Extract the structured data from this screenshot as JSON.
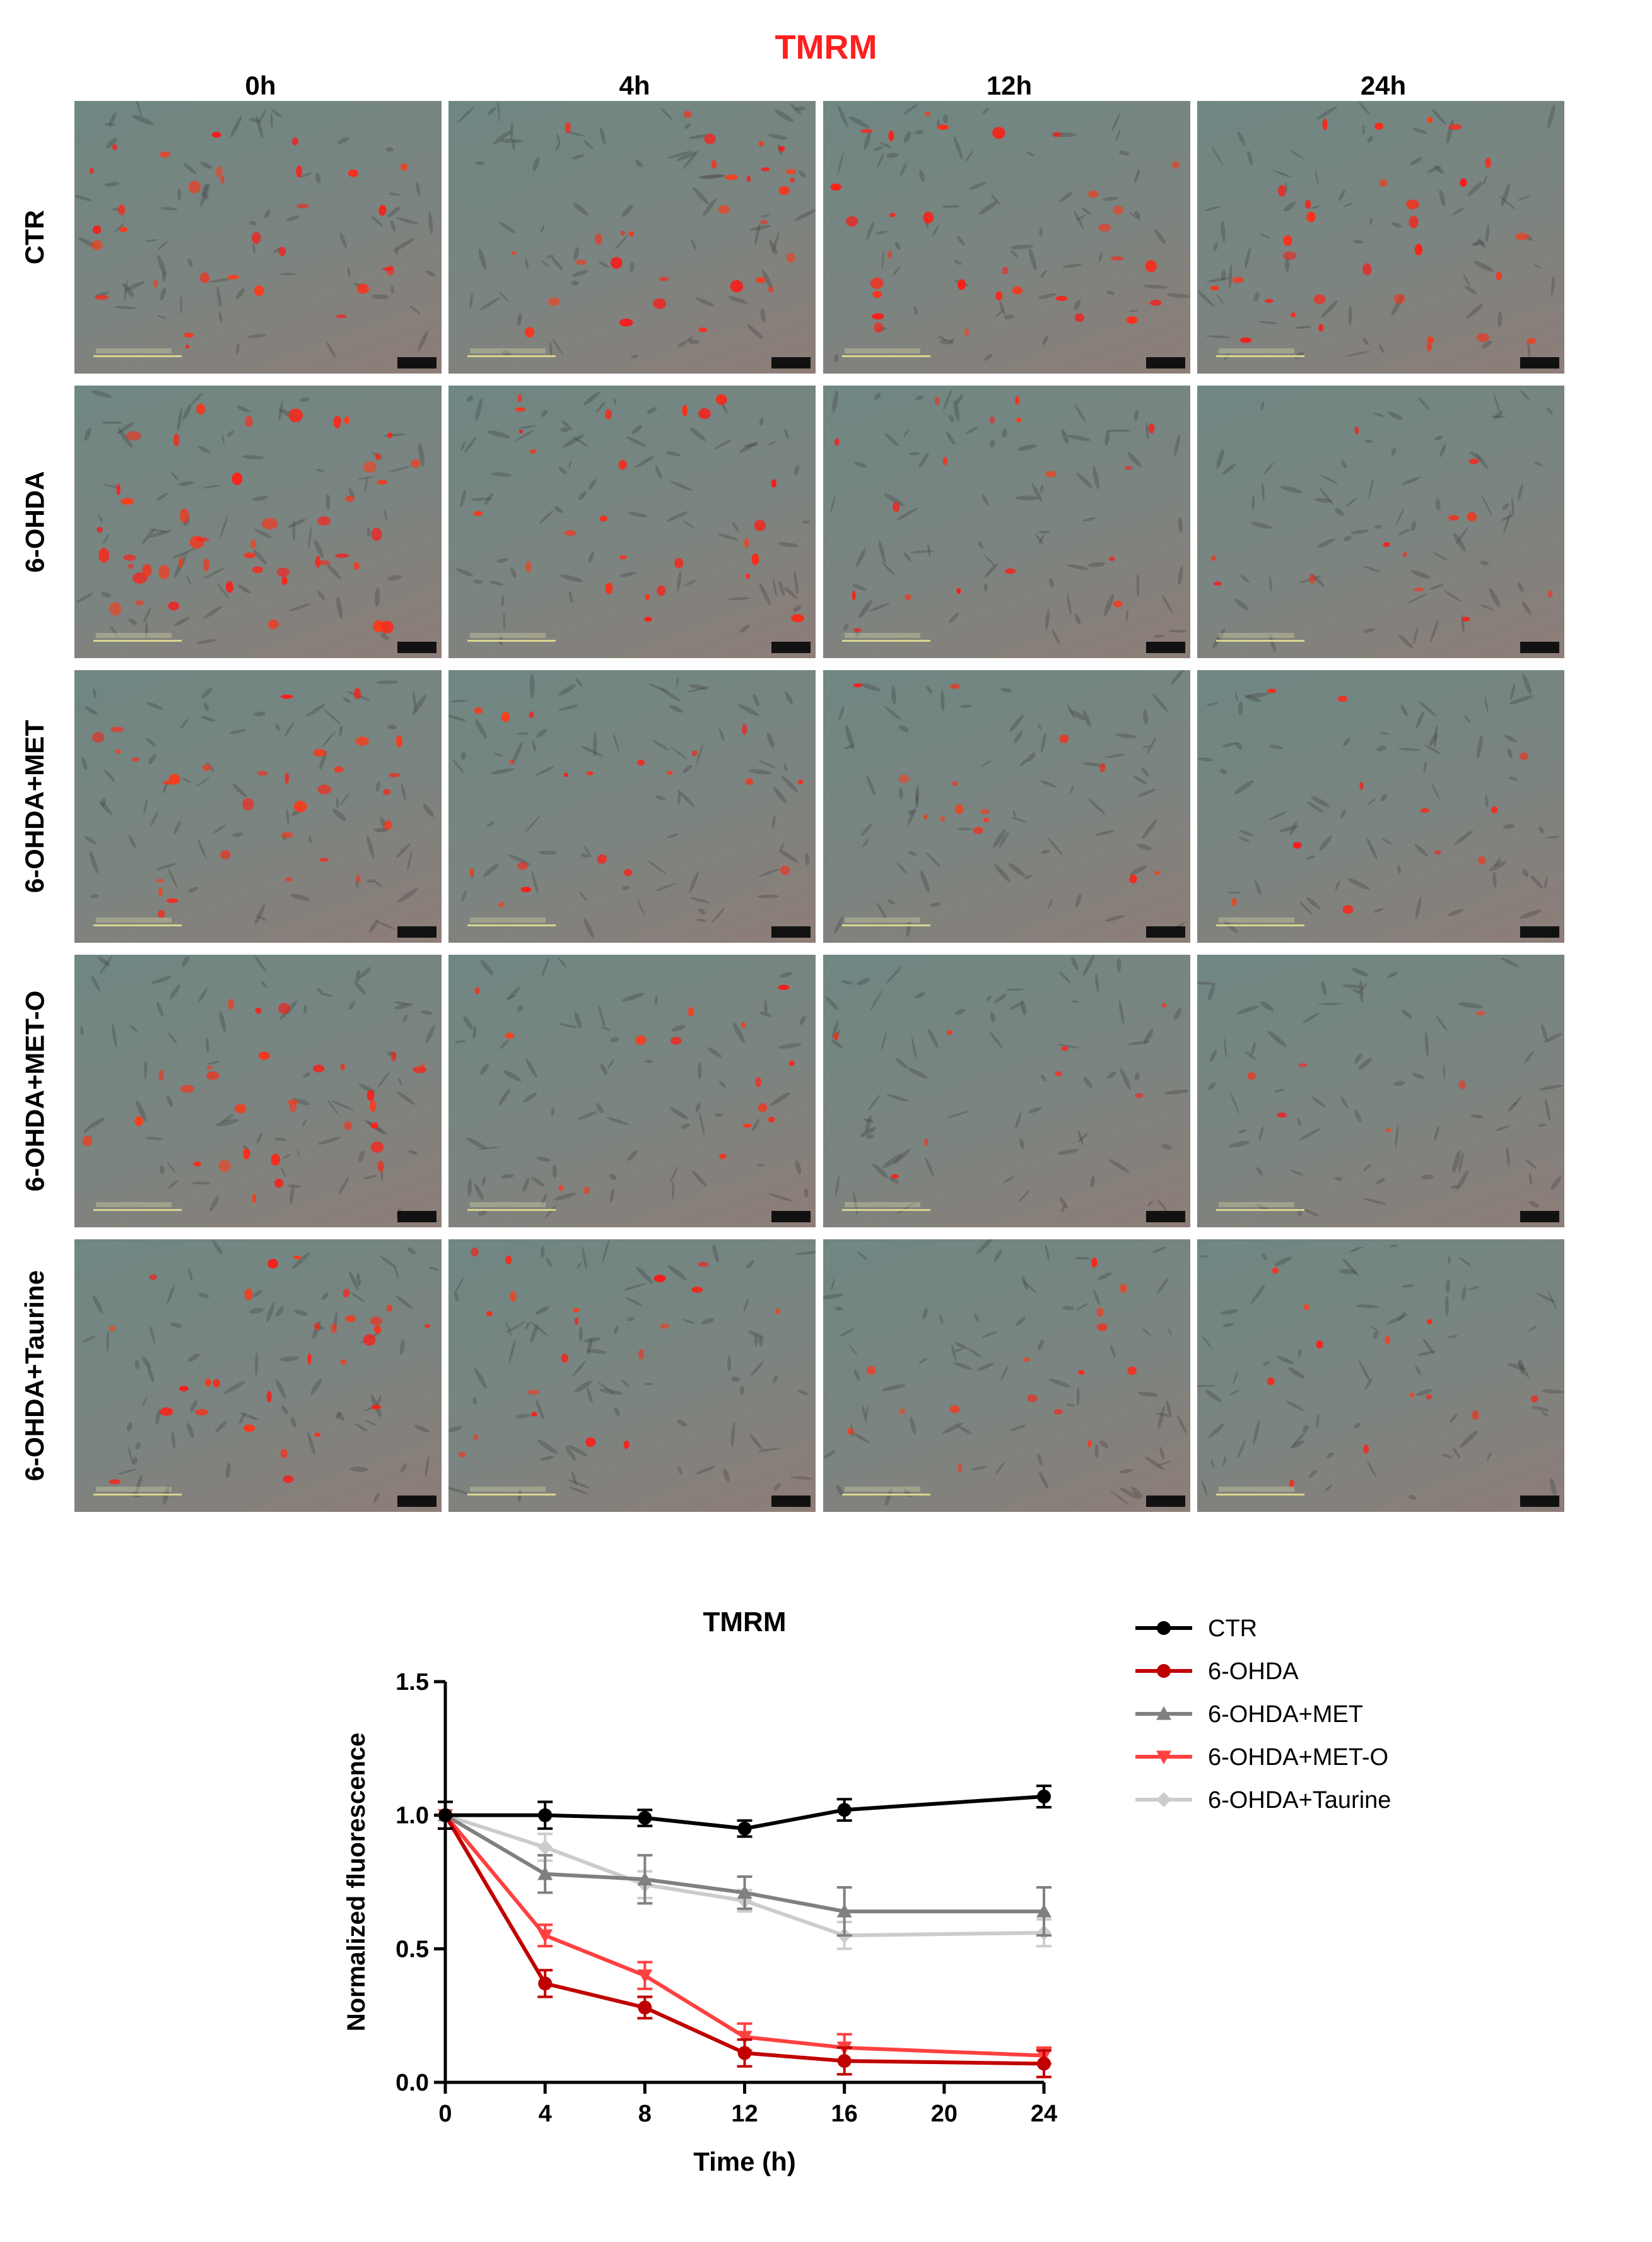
{
  "figure_title": "TMRM",
  "colors": {
    "title_red": "#ff1f1f",
    "CTR": "#000000",
    "6-OHDA": "#c00000",
    "6-OHDA+MET": "#808080",
    "6-OHDA+MET-O": "#ff4040",
    "6-OHDA+Taurine": "#cccccc"
  },
  "image_grid": {
    "column_headers": [
      "0h",
      "4h",
      "12h",
      "24h"
    ],
    "row_labels": [
      "CTR",
      "6-OHDA",
      "6-OHDA+MET",
      "6-OHDA+MET-O",
      "6-OHDA+Taurine"
    ],
    "red_signal_intensity": [
      [
        0.55,
        0.55,
        0.55,
        0.55
      ],
      [
        0.85,
        0.45,
        0.3,
        0.22
      ],
      [
        0.55,
        0.35,
        0.25,
        0.2
      ],
      [
        0.55,
        0.28,
        0.15,
        0.1
      ],
      [
        0.5,
        0.35,
        0.28,
        0.22
      ]
    ]
  },
  "chart_data": {
    "type": "line",
    "title": "TMRM",
    "xlabel": "Time (h)",
    "ylabel": "Normalized fluorescence",
    "xlim": [
      0,
      24
    ],
    "ylim": [
      0,
      1.5
    ],
    "xticks": [
      0,
      4,
      8,
      12,
      16,
      20,
      24
    ],
    "xtick_labels": [
      "0",
      "4",
      "8",
      "12",
      "16",
      "20",
      "24"
    ],
    "yticks": [
      0.0,
      0.5,
      1.0,
      1.5
    ],
    "ytick_labels": [
      "0.0",
      "0.5",
      "1.0",
      "1.5"
    ],
    "x": [
      0,
      4,
      8,
      12,
      16,
      24
    ],
    "legend_position": "top-right",
    "series": [
      {
        "name": "CTR",
        "marker": "circle",
        "values": [
          1.0,
          1.0,
          0.99,
          0.95,
          1.02,
          1.07
        ],
        "errors": [
          0.05,
          0.05,
          0.03,
          0.03,
          0.04,
          0.04
        ]
      },
      {
        "name": "6-OHDA",
        "marker": "circle",
        "values": [
          1.0,
          0.37,
          0.28,
          0.11,
          0.08,
          0.07
        ],
        "errors": [
          0.05,
          0.05,
          0.04,
          0.05,
          0.05,
          0.05
        ]
      },
      {
        "name": "6-OHDA+MET",
        "marker": "triangle-up",
        "values": [
          1.0,
          0.78,
          0.76,
          0.71,
          0.64,
          0.64
        ],
        "errors": [
          0.05,
          0.07,
          0.09,
          0.06,
          0.09,
          0.09
        ]
      },
      {
        "name": "6-OHDA+MET-O",
        "marker": "triangle-down",
        "values": [
          1.0,
          0.55,
          0.4,
          0.17,
          0.13,
          0.1
        ],
        "errors": [
          0.05,
          0.04,
          0.05,
          0.05,
          0.05,
          0.03
        ]
      },
      {
        "name": "6-OHDA+Taurine",
        "marker": "diamond",
        "values": [
          1.0,
          0.88,
          0.74,
          0.68,
          0.55,
          0.56
        ],
        "errors": [
          0.05,
          0.05,
          0.05,
          0.04,
          0.05,
          0.05
        ]
      }
    ]
  }
}
